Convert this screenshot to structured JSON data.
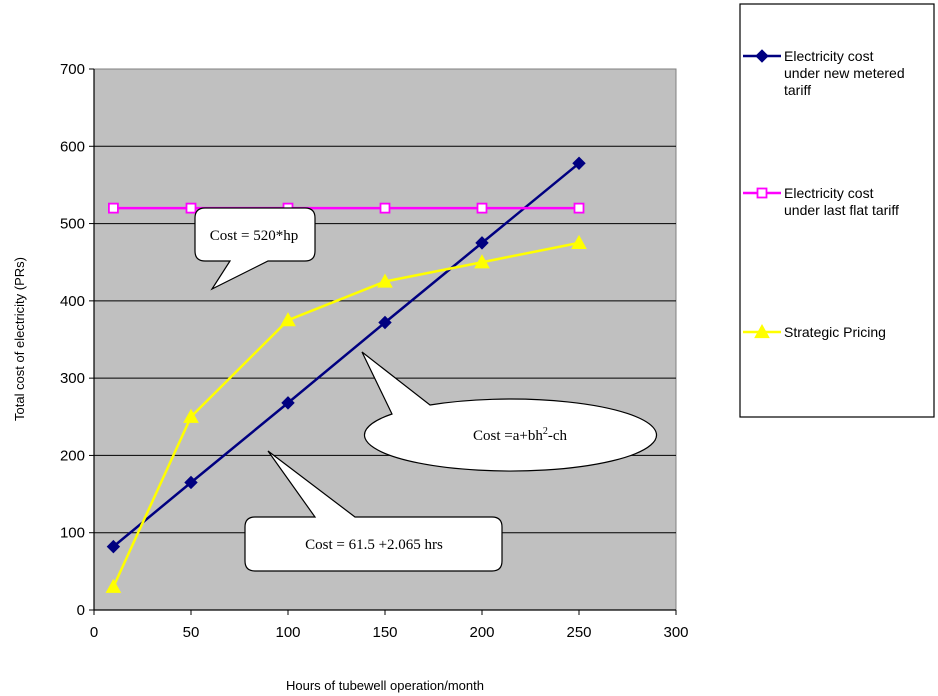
{
  "chart_data": {
    "type": "line",
    "xlabel": "Hours of tubewell operation/month",
    "ylabel": "Total cost of electricity (PRs)",
    "xlim": [
      0,
      300
    ],
    "ylim": [
      0,
      700
    ],
    "xticks": [
      "0",
      "50",
      "100",
      "150",
      "200",
      "250",
      "300"
    ],
    "yticks": [
      "0",
      "100",
      "200",
      "300",
      "400",
      "500",
      "600",
      "700"
    ],
    "grid": "horizontal",
    "plot_background": "#c0c0c0",
    "legend_position": "right",
    "series": [
      {
        "name_lines": [
          "Electricity cost",
          "under new metered",
          "tariff"
        ],
        "color": "#000080",
        "marker": "diamond",
        "x": [
          10,
          50,
          100,
          150,
          200,
          250
        ],
        "y": [
          82,
          165,
          268,
          372,
          475,
          578
        ]
      },
      {
        "name_lines": [
          "Electricity cost",
          "under last flat tariff"
        ],
        "color": "#ff00ff",
        "marker": "square",
        "x": [
          10,
          50,
          100,
          150,
          200,
          250
        ],
        "y": [
          520,
          520,
          520,
          520,
          520,
          520
        ]
      },
      {
        "name_lines": [
          "Strategic Pricing"
        ],
        "color": "#ffff00",
        "marker": "triangle",
        "x": [
          10,
          50,
          100,
          150,
          200,
          250
        ],
        "y": [
          30,
          250,
          375,
          425,
          450,
          475
        ]
      }
    ],
    "annotations": [
      {
        "text": "Cost = 520*hp",
        "shape": "rounded-rect"
      },
      {
        "base": "Cost =a+bh",
        "sup": "2",
        "tail": "-ch",
        "shape": "ellipse"
      },
      {
        "text": "Cost = 61.5 +2.065 hrs",
        "shape": "rounded-rect"
      }
    ]
  }
}
